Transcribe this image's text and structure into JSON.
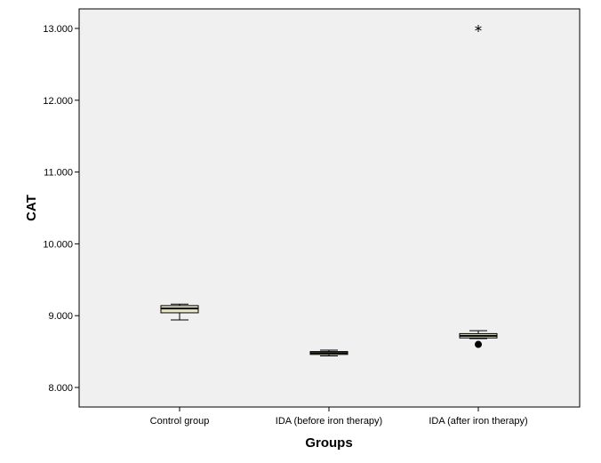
{
  "chart_data": {
    "type": "boxplot",
    "xlabel": "Groups",
    "ylabel": "CAT",
    "ylim": [
      7.75,
      13.3
    ],
    "yticks": [
      8,
      9,
      10,
      11,
      12,
      13
    ],
    "ytick_labels": [
      "8.000",
      "9.000",
      "10.000",
      "11.000",
      "12.000",
      "13.000"
    ],
    "categories": [
      "Control group",
      "IDA (before iron therapy)",
      "IDA (after iron therapy)"
    ],
    "boxes": [
      {
        "whisker_low": 8.94,
        "q1": 9.04,
        "median": 9.1,
        "q3": 9.14,
        "whisker_high": 9.16,
        "outliers": [],
        "extremes": []
      },
      {
        "whisker_low": 8.44,
        "q1": 8.46,
        "median": 8.48,
        "q3": 8.5,
        "whisker_high": 8.52,
        "outliers": [],
        "extremes": []
      },
      {
        "whisker_low": 8.68,
        "q1": 8.69,
        "median": 8.72,
        "q3": 8.75,
        "whisker_high": 8.79,
        "outliers": [
          8.6
        ],
        "extremes": [
          13.0
        ]
      }
    ],
    "grid": false,
    "colors": {
      "plot_background": "#f0f0f0",
      "box_fill": "#e8e6c8",
      "stroke": "#000000"
    }
  }
}
